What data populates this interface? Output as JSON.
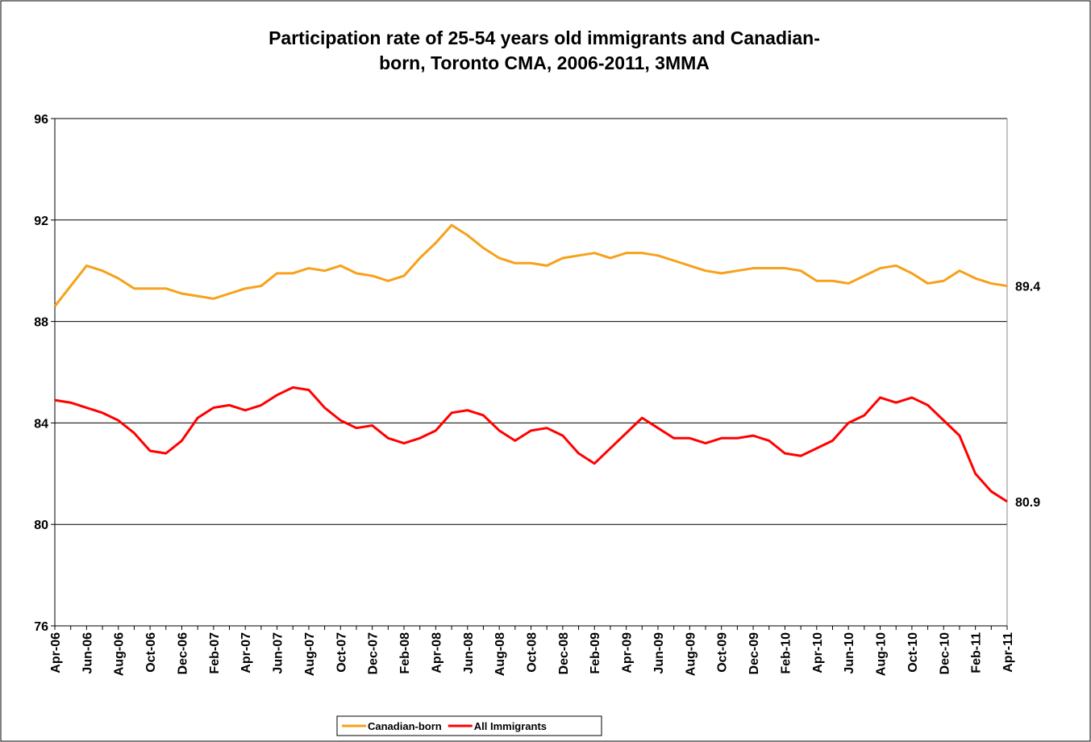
{
  "chart_data": {
    "type": "line",
    "title": "Participation rate of 25-54 years old immigrants and Canadian-born, Toronto CMA, 2006-2011, 3MMA",
    "categories": [
      "Apr-06",
      null,
      "Jun-06",
      null,
      "Aug-06",
      null,
      "Oct-06",
      null,
      "Dec-06",
      null,
      "Feb-07",
      null,
      "Apr-07",
      null,
      "Jun-07",
      null,
      "Aug-07",
      null,
      "Oct-07",
      null,
      "Dec-07",
      null,
      "Feb-08",
      null,
      "Apr-08",
      null,
      "Jun-08",
      null,
      "Aug-08",
      null,
      "Oct-08",
      null,
      "Dec-08",
      null,
      "Feb-09",
      null,
      "Apr-09",
      null,
      "Jun-09",
      null,
      "Aug-09",
      null,
      "Oct-09",
      null,
      "Dec-09",
      null,
      "Feb-10",
      null,
      "Apr-10",
      null,
      "Jun-10",
      null,
      "Aug-10",
      null,
      "Oct-10",
      null,
      "Dec-10",
      null,
      "Feb-11",
      null,
      "Apr-11"
    ],
    "series": [
      {
        "name": "Canadian-born",
        "color": "#f7a11a",
        "values": [
          88.6,
          89.4,
          90.2,
          90.0,
          89.7,
          89.3,
          89.3,
          89.3,
          89.1,
          89.0,
          88.9,
          89.1,
          89.3,
          89.4,
          89.9,
          89.9,
          90.1,
          90.0,
          90.2,
          89.9,
          89.8,
          89.6,
          89.8,
          90.5,
          91.1,
          91.8,
          91.4,
          90.9,
          90.5,
          90.3,
          90.3,
          90.2,
          90.5,
          90.6,
          90.7,
          90.5,
          90.7,
          90.7,
          90.6,
          90.4,
          90.2,
          90.0,
          89.9,
          90.0,
          90.1,
          90.1,
          90.1,
          90.0,
          89.6,
          89.6,
          89.5,
          89.8,
          90.1,
          90.2,
          89.9,
          89.5,
          89.6,
          90.0,
          89.7,
          89.5,
          89.4
        ]
      },
      {
        "name": "All Immigrants",
        "color": "#ff0000",
        "values": [
          84.9,
          84.8,
          84.6,
          84.4,
          84.1,
          83.6,
          82.9,
          82.8,
          83.3,
          84.2,
          84.6,
          84.7,
          84.5,
          84.7,
          85.1,
          85.4,
          85.3,
          84.6,
          84.1,
          83.8,
          83.9,
          83.4,
          83.2,
          83.4,
          83.7,
          84.4,
          84.5,
          84.3,
          83.7,
          83.3,
          83.7,
          83.8,
          83.5,
          82.8,
          82.4,
          83.0,
          83.6,
          84.2,
          83.8,
          83.4,
          83.4,
          83.2,
          83.4,
          83.4,
          83.5,
          83.3,
          82.8,
          82.7,
          83.0,
          83.3,
          84.0,
          84.3,
          85.0,
          84.8,
          85.0,
          84.7,
          84.1,
          83.5,
          82.0,
          81.3,
          80.9
        ]
      }
    ],
    "ylim": [
      76,
      96
    ],
    "yticks": [
      76,
      80,
      84,
      88,
      92,
      96
    ],
    "grid": true,
    "legend": "bottom"
  }
}
